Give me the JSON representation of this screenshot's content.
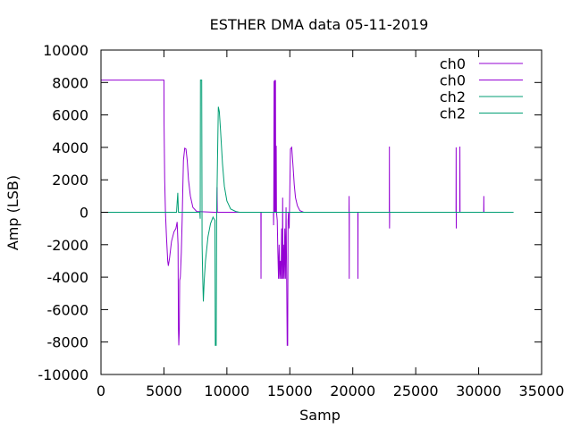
{
  "chart_data": {
    "type": "line",
    "title": "ESTHER  DMA data 05-11-2019",
    "xlabel": "Samp",
    "ylabel": "Amp (LSB)",
    "xlim": [
      0,
      35000
    ],
    "ylim": [
      -10000,
      10000
    ],
    "xticks": [
      0,
      5000,
      10000,
      15000,
      20000,
      25000,
      30000,
      35000
    ],
    "yticks": [
      -10000,
      -8000,
      -6000,
      -4000,
      -2000,
      0,
      2000,
      4000,
      6000,
      8000,
      10000
    ],
    "x_tick_labels": [
      "0",
      "5000",
      "10000",
      "15000",
      "20000",
      "25000",
      "30000",
      "35000"
    ],
    "y_tick_labels": [
      "-10000",
      "-8000",
      "-6000",
      "-4000",
      "-2000",
      "0",
      "2000",
      "4000",
      "6000",
      "8000",
      "10000"
    ],
    "grid": false,
    "legend_position": "top-right",
    "colors": {
      "ch0": "#9400d3",
      "ch2": "#009e73"
    },
    "series": [
      {
        "name": "ch0",
        "color": "#9400d3",
        "points": [
          [
            0,
            8150
          ],
          [
            5000,
            8150
          ],
          [
            5010,
            5500
          ],
          [
            5060,
            2000
          ],
          [
            5120,
            0
          ],
          [
            5200,
            -1500
          ],
          [
            5300,
            -3000
          ],
          [
            5350,
            -3300
          ],
          [
            5450,
            -2800
          ],
          [
            5600,
            -1800
          ],
          [
            5800,
            -1200
          ],
          [
            5950,
            -1000
          ],
          [
            6050,
            -600
          ],
          [
            6120,
            -2000
          ],
          [
            6150,
            -7200
          ],
          [
            6180,
            -8200
          ],
          [
            6220,
            -7300
          ],
          [
            6250,
            -4200
          ],
          [
            6300,
            -4000
          ],
          [
            6380,
            -2500
          ],
          [
            6450,
            -400
          ],
          [
            6500,
            1500
          ],
          [
            6550,
            3200
          ],
          [
            6650,
            3950
          ],
          [
            6750,
            3900
          ],
          [
            6850,
            3200
          ],
          [
            6950,
            2000
          ],
          [
            7100,
            1000
          ],
          [
            7300,
            300
          ],
          [
            7600,
            50
          ],
          [
            9000,
            0
          ],
          [
            9200,
            0
          ],
          [
            9220,
            1550
          ],
          [
            9240,
            0
          ],
          [
            12700,
            0
          ],
          [
            12710,
            -4100
          ],
          [
            12720,
            0
          ],
          [
            13700,
            0
          ],
          [
            13710,
            -800
          ],
          [
            13720,
            0
          ],
          [
            13750,
            8100
          ],
          [
            13770,
            0
          ],
          [
            13800,
            8150
          ],
          [
            13820,
            0
          ],
          [
            13860,
            8150
          ],
          [
            13880,
            0
          ],
          [
            13920,
            4100
          ],
          [
            13940,
            0
          ],
          [
            14000,
            -500
          ],
          [
            14050,
            -2500
          ],
          [
            14100,
            -4100
          ],
          [
            14150,
            -2000
          ],
          [
            14200,
            -4100
          ],
          [
            14250,
            -3000
          ],
          [
            14300,
            -4100
          ],
          [
            14350,
            -1000
          ],
          [
            14400,
            -4100
          ],
          [
            14430,
            900
          ],
          [
            14460,
            -4100
          ],
          [
            14500,
            -2000
          ],
          [
            14550,
            -4100
          ],
          [
            14600,
            -1000
          ],
          [
            14650,
            -4100
          ],
          [
            14700,
            300
          ],
          [
            14750,
            -4100
          ],
          [
            14790,
            -8200
          ],
          [
            14830,
            -8200
          ],
          [
            14860,
            -500
          ],
          [
            14900,
            0
          ],
          [
            14950,
            -1000
          ],
          [
            15050,
            3900
          ],
          [
            15150,
            4000
          ],
          [
            15250,
            2900
          ],
          [
            15350,
            1700
          ],
          [
            15450,
            900
          ],
          [
            15600,
            400
          ],
          [
            15800,
            100
          ],
          [
            16100,
            0
          ],
          [
            19700,
            0
          ],
          [
            19710,
            1000
          ],
          [
            19720,
            -4100
          ],
          [
            19730,
            0
          ],
          [
            20400,
            0
          ],
          [
            20410,
            -4100
          ],
          [
            20420,
            0
          ],
          [
            22900,
            0
          ],
          [
            22910,
            4050
          ],
          [
            22920,
            -1000
          ],
          [
            22930,
            0
          ],
          [
            28200,
            0
          ],
          [
            28210,
            4000
          ],
          [
            28220,
            -1000
          ],
          [
            28230,
            0
          ],
          [
            28500,
            0
          ],
          [
            28510,
            4050
          ],
          [
            28520,
            0
          ],
          [
            30400,
            0
          ],
          [
            30410,
            1000
          ],
          [
            30420,
            0
          ],
          [
            32768,
            0
          ]
        ]
      },
      {
        "name": "ch0",
        "color": "#9400d3",
        "points": []
      },
      {
        "name": "ch2",
        "color": "#009e73",
        "points": [
          [
            0,
            0
          ],
          [
            6000,
            0
          ],
          [
            6100,
            1200
          ],
          [
            6150,
            0
          ],
          [
            7850,
            0
          ],
          [
            7880,
            -400
          ],
          [
            7900,
            8150
          ],
          [
            8000,
            8150
          ],
          [
            8030,
            -2000
          ],
          [
            8080,
            -4000
          ],
          [
            8130,
            -5500
          ],
          [
            8200,
            -4200
          ],
          [
            8300,
            -3000
          ],
          [
            8500,
            -1500
          ],
          [
            8700,
            -700
          ],
          [
            8900,
            -300
          ],
          [
            9050,
            -500
          ],
          [
            9080,
            -8200
          ],
          [
            9150,
            -8200
          ],
          [
            9190,
            -100
          ],
          [
            9250,
            3000
          ],
          [
            9320,
            6500
          ],
          [
            9400,
            6200
          ],
          [
            9500,
            5000
          ],
          [
            9650,
            3000
          ],
          [
            9800,
            1600
          ],
          [
            10000,
            700
          ],
          [
            10300,
            200
          ],
          [
            10700,
            50
          ],
          [
            11000,
            0
          ],
          [
            32768,
            0
          ]
        ]
      },
      {
        "name": "ch2",
        "color": "#009e73",
        "points": []
      }
    ]
  }
}
